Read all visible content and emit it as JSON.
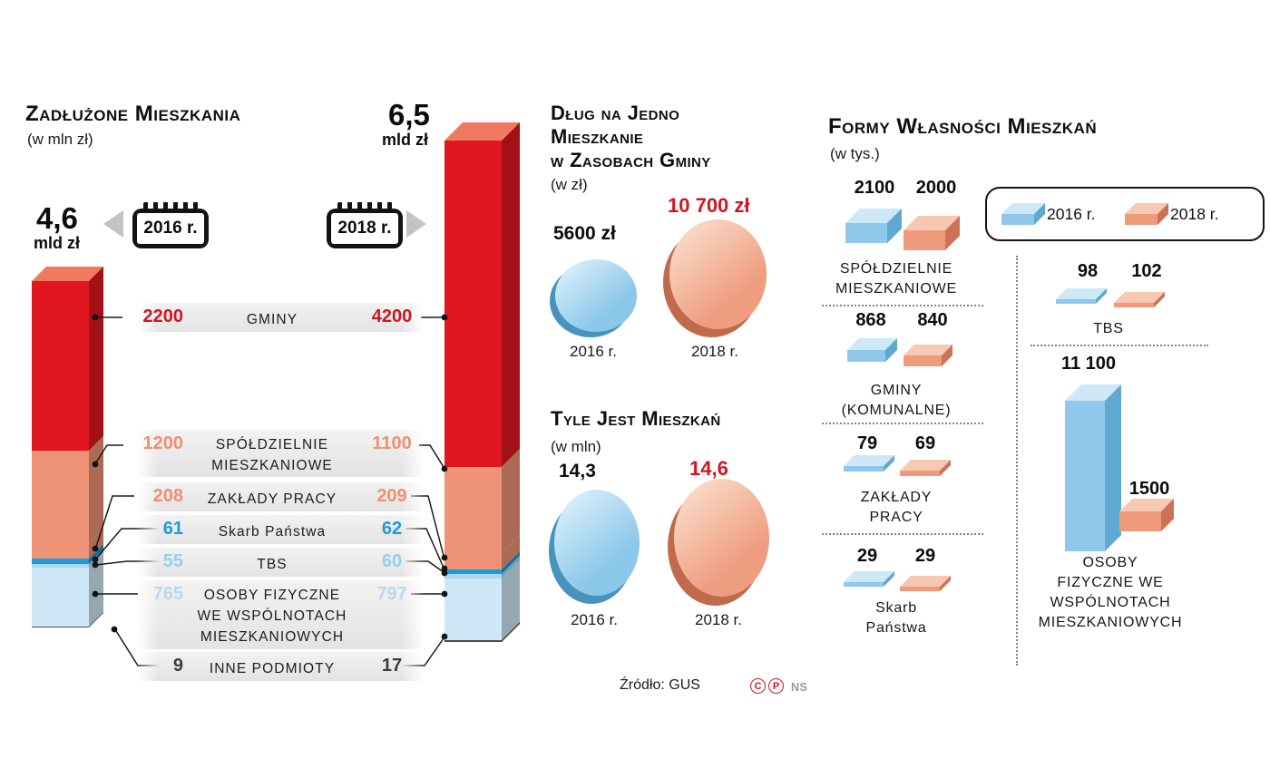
{
  "colors": {
    "red": "#d31420",
    "salmon": "#ef9376",
    "blue": "#1b9cd8",
    "light_blue": "#a8d9ef",
    "pale_blue": "#cfe8f7",
    "dark": "#3c3c3c"
  },
  "left_chart": {
    "title": "Zadłużone Mieszkania",
    "unit": "(w mln zł)",
    "total_2016": "4,6",
    "total_2016_unit": "mld zł",
    "total_2018": "6,5",
    "total_2018_unit": "mld zł",
    "year_2016": "2016 r.",
    "year_2018": "2018 r.",
    "rows": [
      {
        "lines": [
          "GMINY"
        ],
        "v2016": "2200",
        "v2018": "4200",
        "value_color": "#d31420"
      },
      {
        "lines": [
          "SPÓŁDZIELNIE",
          "MIESZKANIOWE"
        ],
        "v2016": "1200",
        "v2018": "1100",
        "value_color": "#ee9071"
      },
      {
        "lines": [
          "ZAKŁADY PRACY"
        ],
        "v2016": "208",
        "v2018": "209",
        "value_color": "#ee9071"
      },
      {
        "lines": [
          "Skarb Państwa"
        ],
        "v2016": "61",
        "v2018": "62",
        "value_color": "#1f9ad6"
      },
      {
        "lines": [
          "TBS"
        ],
        "v2016": "55",
        "v2018": "60",
        "value_color": "#97cfec"
      },
      {
        "lines": [
          "OSOBY FIZYCZNE",
          "WE WSPÓLNOTACH",
          "MIESZKANIOWYCH"
        ],
        "v2016": "765",
        "v2018": "797",
        "value_color": "#b7d8ec"
      },
      {
        "lines": [
          "INNE PODMIOTY"
        ],
        "v2016": "9",
        "v2018": "17",
        "value_color": "#3c3c3c"
      }
    ]
  },
  "middle": {
    "debt": {
      "title_lines": [
        "Dług na Jedno",
        "Mieszkanie",
        "w Zasobach Gminy"
      ],
      "unit": "(w zł)",
      "v2016": "5600 zł",
      "v2018": "10 700 zł",
      "y2016": "2016 r.",
      "y2018": "2018 r."
    },
    "count": {
      "title": "Tyle Jest Mieszkań",
      "unit": "(w mln)",
      "v2016": "14,3",
      "v2018": "14,6",
      "y2016": "2016 r.",
      "y2018": "2018 r."
    },
    "source": "Źródło: GUS",
    "mark_c": "C",
    "mark_p": "P",
    "mark_ns": "NS"
  },
  "right_chart": {
    "title": "Formy Własności Mieszkań",
    "unit": "(w tys.)",
    "legend_2016": "2016 r.",
    "legend_2018": "2018 r.",
    "items": [
      {
        "lines": [
          "SPÓŁDZIELNIE",
          "MIESZKANIOWE"
        ],
        "v2016": "2100",
        "v2018": "2000"
      },
      {
        "lines": [
          "GMINY",
          "(KOMUNALNE)"
        ],
        "v2016": "868",
        "v2018": "840"
      },
      {
        "lines": [
          "ZAKŁADY",
          "PRACY"
        ],
        "v2016": "79",
        "v2018": "69"
      },
      {
        "lines": [
          "Skarb",
          "Państwa"
        ],
        "v2016": "29",
        "v2018": "29"
      },
      {
        "lines": [
          "TBS"
        ],
        "v2016": "98",
        "v2018": "102"
      },
      {
        "lines": [
          "OSOBY",
          "FIZYCZNE WE",
          "WSPÓLNOTACH",
          "MIESZKANIOWYCH"
        ],
        "v2016": "11 100",
        "v2018": "1500"
      }
    ]
  },
  "chart_data": [
    {
      "type": "bar",
      "variant": "stacked-3d-column-pair",
      "title": "Zadłużone mieszkania",
      "unit": "mln zł",
      "categories": [
        "2016 r.",
        "2018 r."
      ],
      "totals_label": [
        "4,6 mld zł",
        "6,5 mld zł"
      ],
      "series": [
        {
          "name": "Gminy",
          "values": [
            2200,
            4200
          ],
          "color": "#e0171e"
        },
        {
          "name": "Spółdzielnie mieszkaniowe",
          "values": [
            1200,
            1100
          ],
          "color": "#ef9376"
        },
        {
          "name": "Zakłady pracy",
          "values": [
            208,
            209
          ],
          "color": "#ef9376"
        },
        {
          "name": "Skarb Państwa",
          "values": [
            61,
            62
          ],
          "color": "#1b9cd8"
        },
        {
          "name": "TBS",
          "values": [
            55,
            60
          ],
          "color": "#a8d9ef"
        },
        {
          "name": "Osoby fizyczne we wspólnotach mieszkaniowych",
          "values": [
            765,
            797
          ],
          "color": "#cfe8f7"
        },
        {
          "name": "Inne podmioty",
          "values": [
            9,
            17
          ],
          "color": "#4a4a4a"
        }
      ],
      "legend_position": "between-columns",
      "grid": false
    },
    {
      "type": "pie",
      "variant": "sized-disks",
      "title": "Dług na jedno mieszkanie w zasobach gminy",
      "unit": "zł",
      "categories": [
        "2016 r.",
        "2018 r."
      ],
      "values": [
        5600,
        10700
      ],
      "labels": [
        "5600 zł",
        "10 700 zł"
      ]
    },
    {
      "type": "pie",
      "variant": "sized-disks",
      "title": "Tyle jest mieszkań",
      "unit": "mln",
      "categories": [
        "2016 r.",
        "2018 r."
      ],
      "values": [
        14.3,
        14.6
      ],
      "labels": [
        "14,3",
        "14,6"
      ]
    },
    {
      "type": "bar",
      "variant": "3d-cuboid-pictograms",
      "title": "Formy własności mieszkań",
      "unit": "tys.",
      "categories": [
        "Spółdzielnie mieszkaniowe",
        "Gminy (komunalne)",
        "Zakłady pracy",
        "Skarb Państwa",
        "TBS",
        "Osoby fizyczne we wspólnotach mieszkaniowych"
      ],
      "series": [
        {
          "name": "2016 r.",
          "color": "#8fc8ea",
          "values": [
            2100,
            868,
            79,
            29,
            98,
            11100
          ]
        },
        {
          "name": "2018 r.",
          "color": "#ee9a7d",
          "values": [
            2000,
            840,
            69,
            29,
            102,
            1500
          ]
        }
      ],
      "grid": false
    }
  ]
}
